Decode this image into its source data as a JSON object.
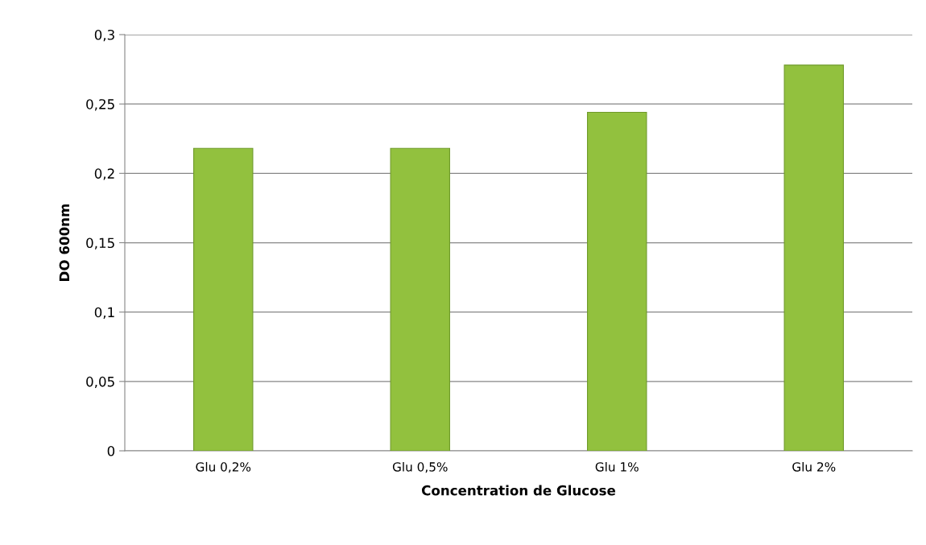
{
  "chart_data": {
    "type": "bar",
    "xlabel": "Concentration de Glucose",
    "ylabel": "DO 600nm",
    "categories": [
      "Glu 0,2%",
      "Glu 0,5%",
      "Glu 1%",
      "Glu 2%"
    ],
    "values": [
      0.218,
      0.218,
      0.244,
      0.278
    ],
    "color": "#92c13e",
    "ylim": [
      0,
      0.3
    ],
    "yticks": [
      {
        "value": 0,
        "label": "0"
      },
      {
        "value": 0.05,
        "label": "0,05"
      },
      {
        "value": 0.1,
        "label": "0,1"
      },
      {
        "value": 0.15,
        "label": "0,15"
      },
      {
        "value": 0.2,
        "label": "0,2"
      },
      {
        "value": 0.25,
        "label": "0,25"
      },
      {
        "value": 0.3,
        "label": "0,3"
      }
    ],
    "grid": "y"
  }
}
